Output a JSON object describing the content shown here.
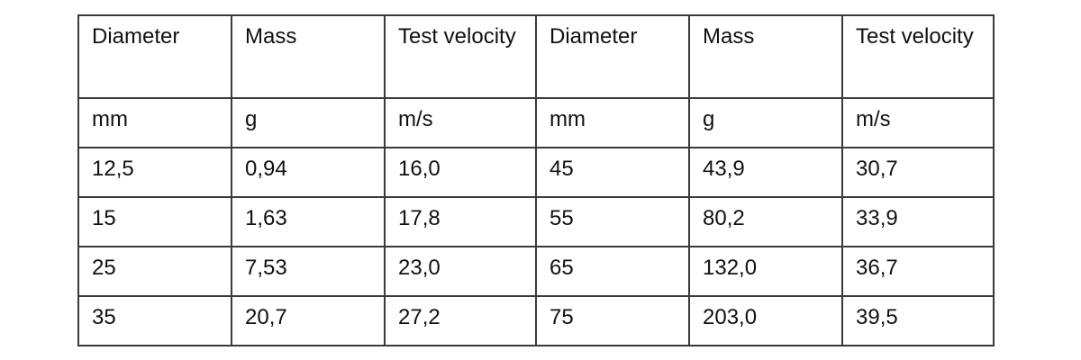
{
  "table": {
    "headers": [
      "Diameter",
      "Mass",
      "Test velocity",
      "Diameter",
      "Mass",
      "Test velocity"
    ],
    "rows": [
      [
        "mm",
        "g",
        "m/s",
        "mm",
        "g",
        "m/s"
      ],
      [
        "12,5",
        "0,94",
        "16,0",
        "45",
        "43,9",
        "30,7"
      ],
      [
        "15",
        "1,63",
        "17,8",
        "55",
        "80,2",
        "33,9"
      ],
      [
        "25",
        "7,53",
        "23,0",
        "65",
        "132,0",
        "36,7"
      ],
      [
        "35",
        "20,7",
        "27,2",
        "75",
        "203,0",
        "39,5"
      ]
    ]
  }
}
